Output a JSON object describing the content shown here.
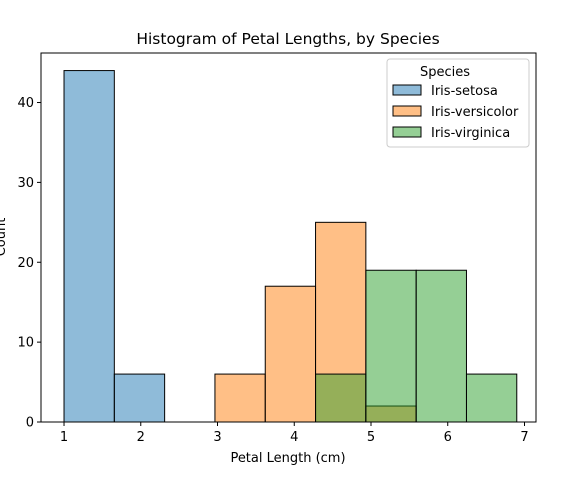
{
  "chart_data": {
    "type": "bar",
    "subtype": "histogram",
    "title": "Histogram of Petal Lengths, by Species",
    "xlabel": "Petal Length (cm)",
    "ylabel": "Count",
    "xlim": [
      0.7,
      7.15
    ],
    "ylim": [
      0,
      46.2
    ],
    "xticks": [
      1,
      2,
      3,
      4,
      5,
      6,
      7
    ],
    "yticks": [
      0,
      10,
      20,
      30,
      40
    ],
    "bin_edges": [
      1.0,
      1.6555,
      2.311,
      2.9665,
      3.622,
      4.2775,
      4.933,
      5.5885,
      6.244,
      6.8995
    ],
    "grid": false,
    "legend": {
      "title": "Species",
      "position": "top-right"
    },
    "series": [
      {
        "name": "Iris-setosa",
        "color": "#1f77b4",
        "values": [
          44,
          6,
          0,
          0,
          0,
          0,
          0,
          0,
          0
        ]
      },
      {
        "name": "Iris-versicolor",
        "color": "#ff7f0e",
        "values": [
          0,
          0,
          0,
          6,
          17,
          25,
          2,
          0,
          0
        ]
      },
      {
        "name": "Iris-virginica",
        "color": "#2ca02c",
        "values": [
          0,
          0,
          0,
          0,
          0,
          6,
          19,
          19,
          6
        ]
      }
    ],
    "bar_opacity": 0.5
  }
}
